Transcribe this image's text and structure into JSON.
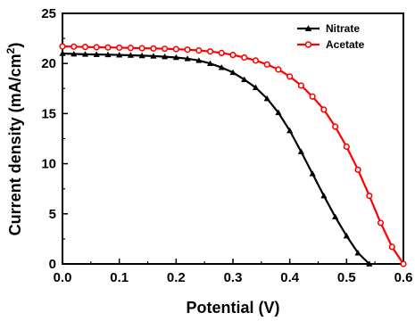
{
  "chart_data": {
    "type": "line",
    "xlabel": "Potential (V)",
    "ylabel": {
      "text": "Current density (mA/cm",
      "sup": "2",
      "close": ")"
    },
    "xlim": [
      0.0,
      0.6
    ],
    "ylim": [
      0,
      25
    ],
    "xticks": [
      "0.0",
      "0.1",
      "0.2",
      "0.3",
      "0.4",
      "0.5",
      "0.6"
    ],
    "yticks": [
      "0",
      "5",
      "10",
      "15",
      "20",
      "25"
    ],
    "grid": false,
    "legend_position": "top-right",
    "series": [
      {
        "name": "Nitrate",
        "color": "#000000",
        "marker": "triangle",
        "x": [
          0.0,
          0.02,
          0.04,
          0.06,
          0.08,
          0.1,
          0.12,
          0.14,
          0.16,
          0.18,
          0.2,
          0.22,
          0.24,
          0.26,
          0.28,
          0.3,
          0.32,
          0.34,
          0.36,
          0.38,
          0.4,
          0.42,
          0.44,
          0.46,
          0.48,
          0.5,
          0.52,
          0.54
        ],
        "y": [
          21.0,
          20.95,
          20.92,
          20.9,
          20.88,
          20.85,
          20.82,
          20.78,
          20.74,
          20.68,
          20.6,
          20.48,
          20.3,
          20.0,
          19.6,
          19.1,
          18.4,
          17.6,
          16.5,
          15.1,
          13.3,
          11.2,
          9.0,
          6.8,
          4.7,
          2.8,
          1.1,
          0.0
        ]
      },
      {
        "name": "Acetate",
        "color": "#ff0000",
        "marker": "circle",
        "x": [
          0.0,
          0.02,
          0.04,
          0.06,
          0.08,
          0.1,
          0.12,
          0.14,
          0.16,
          0.18,
          0.2,
          0.22,
          0.24,
          0.26,
          0.28,
          0.3,
          0.32,
          0.34,
          0.36,
          0.38,
          0.4,
          0.42,
          0.44,
          0.46,
          0.48,
          0.5,
          0.52,
          0.54,
          0.56,
          0.58,
          0.6
        ],
        "y": [
          21.7,
          21.68,
          21.65,
          21.62,
          21.6,
          21.58,
          21.55,
          21.52,
          21.5,
          21.47,
          21.43,
          21.38,
          21.3,
          21.2,
          21.05,
          20.85,
          20.6,
          20.3,
          19.9,
          19.4,
          18.7,
          17.8,
          16.7,
          15.4,
          13.7,
          11.7,
          9.4,
          6.8,
          4.1,
          1.7,
          0.0
        ]
      }
    ]
  }
}
